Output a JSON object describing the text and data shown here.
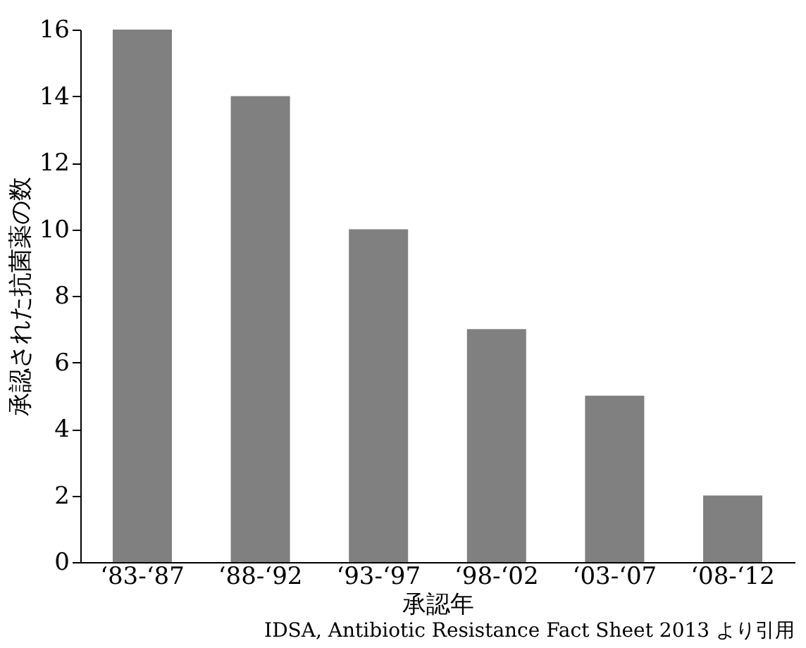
{
  "chart_data": {
    "type": "bar",
    "xlabel": "承認年",
    "ylabel": "承認された抗菌薬の数",
    "categories": [
      "‘83-‘87",
      "‘88-‘92",
      "‘93-‘97",
      "‘98-‘02",
      "‘03-‘07",
      "‘08-‘12"
    ],
    "values": [
      16,
      14,
      10,
      7,
      5,
      2
    ],
    "color": "#808080",
    "ylim": [
      0,
      16
    ],
    "yticks": [
      0,
      2,
      4,
      6,
      8,
      10,
      12,
      14,
      16
    ],
    "grid": false,
    "annotations": [
      "IDSA, Antibiotic Resistance Fact Sheet 2013 より引用"
    ]
  }
}
